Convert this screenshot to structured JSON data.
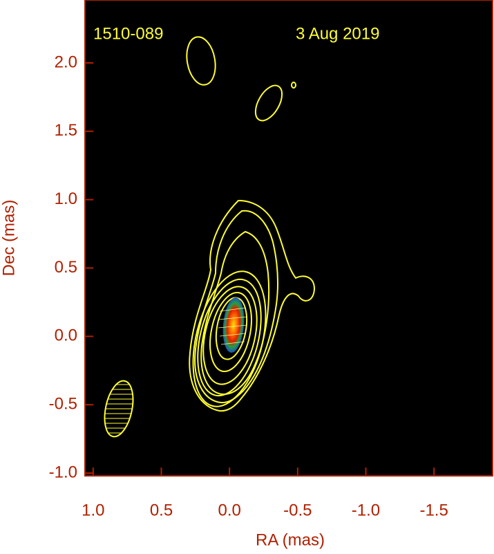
{
  "chart_data": {
    "type": "contour",
    "annotations": [
      "1510-089",
      "3 Aug 2019"
    ],
    "x_label": "RA (mas)",
    "y_label": "Dec (mas)",
    "xlim": [
      1.06,
      -1.93
    ],
    "ylim": [
      -1.02,
      2.46
    ],
    "xticks": [
      {
        "value": 1.0,
        "label": "1.0"
      },
      {
        "value": 0.5,
        "label": "0.5"
      },
      {
        "value": 0.0,
        "label": "0.0"
      },
      {
        "value": -0.5,
        "label": "-0.5"
      },
      {
        "value": -1.0,
        "label": "-1.0"
      },
      {
        "value": -1.5,
        "label": "-1.5"
      }
    ],
    "yticks": [
      {
        "value": -1.0,
        "label": "-1.0"
      },
      {
        "value": -0.5,
        "label": "-0.5"
      },
      {
        "value": 0.0,
        "label": "0.0"
      },
      {
        "value": 0.5,
        "label": "0.5"
      },
      {
        "value": 1.0,
        "label": "1.0"
      },
      {
        "value": 1.5,
        "label": "1.5"
      },
      {
        "value": 2.0,
        "label": "2.0"
      }
    ]
  }
}
